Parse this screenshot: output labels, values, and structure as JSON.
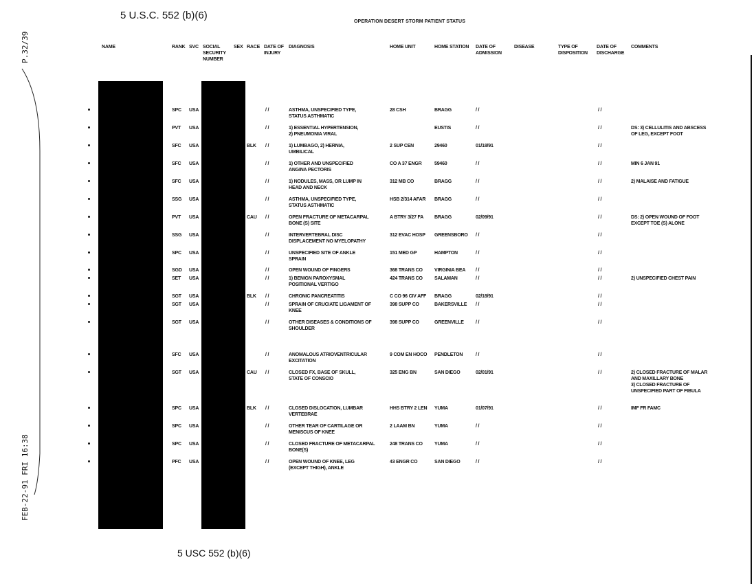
{
  "exemption_top": "5 U.S.C. 552 (b)(6)",
  "exemption_bottom": "5 USC 552 (b)(6)",
  "title": "OPERATION DESERT STORM PATIENT STATUS",
  "fax_page": "P.32/39",
  "fax_stamp": "FEB-22-91 FRI 16:38",
  "headers": {
    "name": "NAME",
    "rank": "RANK",
    "svc": "SVC",
    "ssn": "SOCIAL\nSECURITY\nNUMBER",
    "sex": "SEX",
    "race": "RACE",
    "injury": "DATE OF\nINJURY",
    "diagnosis": "DIAGNOSIS",
    "unit": "HOME UNIT",
    "station": "HOME STATION",
    "admission": "DATE OF\nADMISSION",
    "disease": "DISEASE",
    "disposition": "TYPE OF\nDISPOSITION",
    "discharge": "DATE OF\nDISCHARGE",
    "comments": "COMMENTS"
  },
  "rows": [
    {
      "rank": "SPC",
      "svc": "USA",
      "race": "",
      "injury": "/ /",
      "diagnosis": "ASTHMA, UNSPECIFIED TYPE,\nSTATUS ASTHMATIC",
      "unit": "28 CSH",
      "station": "BRAGG",
      "admission": "/ /",
      "discharge": "/ /",
      "comments": ""
    },
    {
      "rank": "PVT",
      "svc": "USA",
      "race": "",
      "injury": "/ /",
      "diagnosis": "1) ESSENTIAL HYPERTENSION,\n2) PNEUMONIA VIRAL",
      "unit": "",
      "station": "EUSTIS",
      "admission": "/ /",
      "discharge": "/ /",
      "comments": "DS: 3) CELLULITIS AND ABSCESS\nOF LEG, EXCEPT FOOT"
    },
    {
      "rank": "SFC",
      "svc": "USA",
      "race": "BLK",
      "injury": "/ /",
      "diagnosis": "1) LUMBAGO, 2) HERNIA,\nUMBILICAL",
      "unit": "2 SUP CEN",
      "station": "29460",
      "admission": "01/18/91",
      "discharge": "/ /",
      "comments": ""
    },
    {
      "rank": "SFC",
      "svc": "USA",
      "race": "",
      "injury": "/ /",
      "diagnosis": "1) OTHER AND UNSPECIFIED\nANGINA PECTORIS",
      "unit": "CO A 37 ENGR",
      "station": "59460",
      "admission": "/ /",
      "discharge": "/ /",
      "comments": "MIN 6 JAN 91"
    },
    {
      "rank": "SFC",
      "svc": "USA",
      "race": "",
      "injury": "/ /",
      "diagnosis": "1) NODULES, MASS, OR LUMP IN\nHEAD AND NECK",
      "unit": "312 MB CO",
      "station": "BRAGG",
      "admission": "/ /",
      "discharge": "/ /",
      "comments": "2) MALAISE AND FATIGUE"
    },
    {
      "rank": "SSG",
      "svc": "USA",
      "race": "",
      "injury": "/ /",
      "diagnosis": "ASTHMA, UNSPECIFIED TYPE,\nSTATUS ASTHMATIC",
      "unit": "HSB 2/314 AFAR",
      "station": "BRAGG",
      "admission": "/ /",
      "discharge": "/ /",
      "comments": ""
    },
    {
      "rank": "PVT",
      "svc": "USA",
      "race": "CAU",
      "injury": "/ /",
      "diagnosis": "OPEN FRACTURE OF METACARPAL\nBONE (S) SITE",
      "unit": "A BTRY 3/27 FA",
      "station": "BRAGG",
      "admission": "02/09/91",
      "discharge": "/ /",
      "comments": "DS: 2) OPEN WOUND OF FOOT\nEXCEPT TOE (S) ALONE"
    },
    {
      "rank": "SSG",
      "svc": "USA",
      "race": "",
      "injury": "/ /",
      "diagnosis": "INTERVERTEBRAL DISC\nDISPLACEMENT NO MYELOPATHY",
      "unit": "312 EVAC HOSP",
      "station": "GREENSBORO",
      "admission": "/ /",
      "discharge": "/ /",
      "comments": ""
    },
    {
      "rank": "SPC",
      "svc": "USA",
      "race": "",
      "injury": "/ /",
      "diagnosis": "UNSPECIFIED SITE OF ANKLE\nSPRAIN",
      "unit": "151 MED GP",
      "station": "HAMPTON",
      "admission": "/ /",
      "discharge": "/ /",
      "comments": ""
    },
    {
      "rank": "SGD",
      "svc": "USA",
      "race": "",
      "injury": "/ /",
      "diagnosis": "OPEN WOUND OF FINGERS",
      "unit": "368 TRANS CO",
      "station": "VIRGINIA BEA",
      "admission": "/ /",
      "discharge": "/ /",
      "comments": ""
    },
    {
      "rank": "SET",
      "svc": "USA",
      "race": "",
      "injury": "/ /",
      "diagnosis": "1) BENIGN PAROXYSMAL\nPOSITIONAL VERTIGO",
      "unit": "424 TRANS CO",
      "station": "SALAMAN",
      "admission": "/ /",
      "discharge": "/ /",
      "comments": "2) UNSPECIFIED CHEST PAIN"
    },
    {
      "rank": "SGT",
      "svc": "USA",
      "race": "BLK",
      "injury": "/ /",
      "diagnosis": "CHRONIC PANCREATITIS",
      "unit": "C CO 96 CIV AFF",
      "station": "BRAGG",
      "admission": "02/18/91",
      "discharge": "/ /",
      "comments": ""
    },
    {
      "rank": "SGT",
      "svc": "USA",
      "race": "",
      "injury": "/ /",
      "diagnosis": "SPRAIN OF CRUCIATE LIGAMENT OF\nKNEE",
      "unit": "398 SUPP CO",
      "station": "BAKERSVILLE",
      "admission": "/ /",
      "discharge": "/ /",
      "comments": ""
    },
    {
      "rank": "SGT",
      "svc": "USA",
      "race": "",
      "injury": "/ /",
      "diagnosis": "OTHER DISEASES & CONDITIONS OF\nSHOULDER",
      "unit": "398 SUPP CO",
      "station": "GREENVILLE",
      "admission": "/ /",
      "discharge": "/ /",
      "comments": ""
    },
    {
      "rank": "SFC",
      "svc": "USA",
      "race": "",
      "injury": "/ /",
      "diagnosis": "ANOMALOUS ATRIOVENTRICULAR\nEXCITATION",
      "unit": "9 COM EN HOCO",
      "station": "PENDLETON",
      "admission": "/ /",
      "discharge": "/ /",
      "comments": ""
    },
    {
      "rank": "SGT",
      "svc": "USA",
      "race": "CAU",
      "injury": "/ /",
      "diagnosis": "CLOSED FX, BASE OF SKULL,\nSTATE OF CONSCIO",
      "unit": "325 ENG BN",
      "station": "SAN DIEGO",
      "admission": "02/01/91",
      "discharge": "/ /",
      "comments": "2) CLOSED FRACTURE OF MALAR\nAND MAXILLARY BONE\n3) CLOSED FRACTURE OF\nUNSPECIFIED PART OF FIBULA"
    },
    {
      "rank": "SPC",
      "svc": "USA",
      "race": "BLK",
      "injury": "/ /",
      "diagnosis": "CLOSED DISLOCATION, LUMBAR\nVERTEBRAE",
      "unit": "HHS BTRY 2 LEN",
      "station": "YUMA",
      "admission": "01/07/91",
      "discharge": "/ /",
      "comments": "IMF FR FAMC"
    },
    {
      "rank": "SPC",
      "svc": "USA",
      "race": "",
      "injury": "/ /",
      "diagnosis": "OTHER TEAR OF CARTILAGE OR\nMENISCUS OF KNEE",
      "unit": "2 LAAM BN",
      "station": "YUMA",
      "admission": "/ /",
      "discharge": "/ /",
      "comments": ""
    },
    {
      "rank": "SPC",
      "svc": "USA",
      "race": "",
      "injury": "/ /",
      "diagnosis": "CLOSED FRACTURE OF METACARPAL\nBONE(S)",
      "unit": "248 TRANS CO",
      "station": "YUMA",
      "admission": "/ /",
      "discharge": "/ /",
      "comments": ""
    },
    {
      "rank": "PFC",
      "svc": "USA",
      "race": "",
      "injury": "/ /",
      "diagnosis": "OPEN WOUND OF KNEE, LEG\n(EXCEPT THIGH), ANKLE",
      "unit": "43 ENGR CO",
      "station": "SAN DIEGO",
      "admission": "/ /",
      "discharge": "/ /",
      "comments": ""
    }
  ]
}
